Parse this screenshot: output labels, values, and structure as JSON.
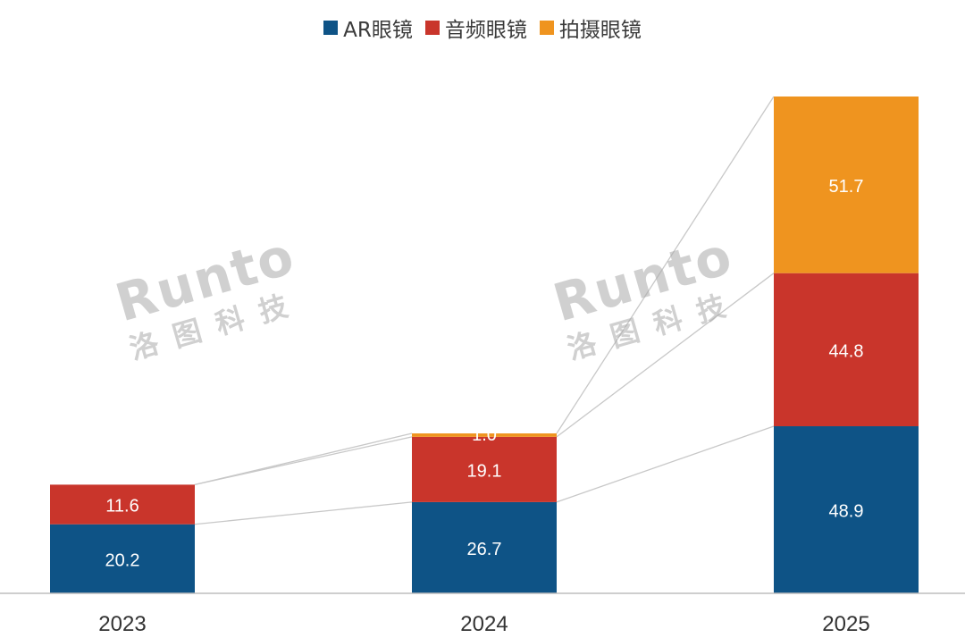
{
  "chart_data": {
    "type": "bar",
    "stacked": true,
    "categories": [
      "2023",
      "2024",
      "2025"
    ],
    "series": [
      {
        "name": "AR眼镜",
        "color": "#0e5386",
        "values": [
          20.2,
          26.7,
          48.9
        ]
      },
      {
        "name": "音频眼镜",
        "color": "#c9352b",
        "values": [
          11.6,
          19.1,
          44.8
        ]
      },
      {
        "name": "拍摄眼镜",
        "color": "#ef941f",
        "values": [
          0,
          1.0,
          51.7
        ]
      }
    ],
    "data_labels": [
      [
        "20.2",
        "26.7",
        "48.9"
      ],
      [
        "11.6",
        "19.1",
        "44.8"
      ],
      [
        "",
        "1.0",
        "51.7"
      ]
    ],
    "legend_position": "top",
    "grid": false,
    "connector_lines": true,
    "ylim": [
      0,
      145.4
    ]
  },
  "watermark": {
    "main": "Runto",
    "sub": "洛图科技"
  }
}
